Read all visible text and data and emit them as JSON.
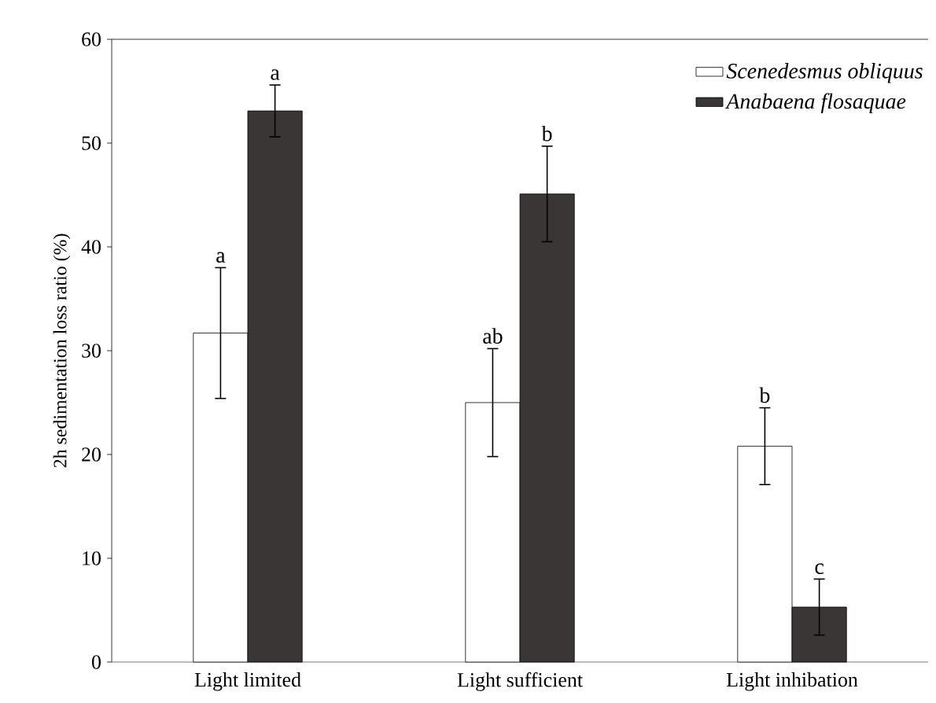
{
  "chart_data": {
    "type": "bar",
    "ylabel": "2h sedimentation loss ratio (%)",
    "categories": [
      "Light limited",
      "Light sufficient",
      "Light inhibation"
    ],
    "series": [
      {
        "name": "Scenedesmus obliquus",
        "color": "#ffffff",
        "values": [
          31.7,
          25.0,
          20.8
        ],
        "errors": [
          6.3,
          5.2,
          3.7
        ]
      },
      {
        "name": "Anabaena flosaquae",
        "color": "#3a3636",
        "values": [
          53.1,
          45.1,
          5.3
        ],
        "errors": [
          2.5,
          4.6,
          2.7
        ]
      }
    ],
    "ylim": [
      0,
      60
    ],
    "yticks": [
      0,
      10,
      20,
      30,
      40,
      50,
      60
    ],
    "legend": "top right",
    "grid": false,
    "annotations": [
      "a",
      "a",
      "ab",
      "b",
      "b",
      "c"
    ]
  }
}
